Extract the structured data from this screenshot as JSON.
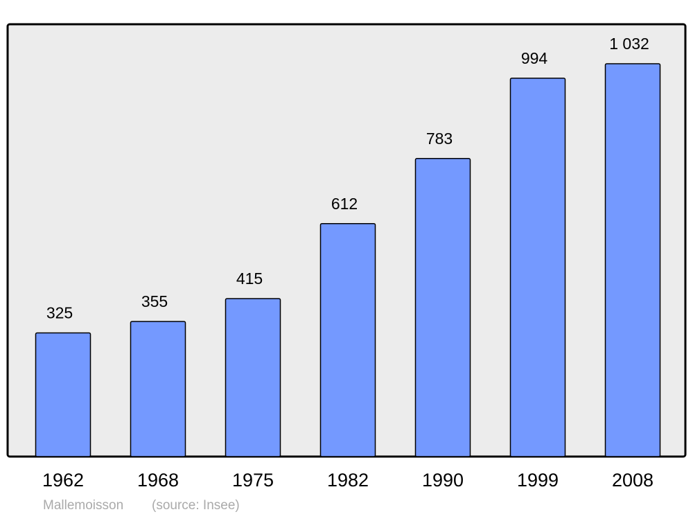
{
  "chart_data": {
    "type": "bar",
    "categories": [
      "1962",
      "1968",
      "1975",
      "1982",
      "1990",
      "1999",
      "2008"
    ],
    "values": [
      325,
      355,
      415,
      612,
      783,
      994,
      1032
    ],
    "value_labels": [
      "325",
      "355",
      "415",
      "612",
      "783",
      "994",
      "1 032"
    ],
    "color": "#7499ff",
    "caption": {
      "place": "Mallemoisson",
      "source": "(source: Insee)"
    }
  }
}
